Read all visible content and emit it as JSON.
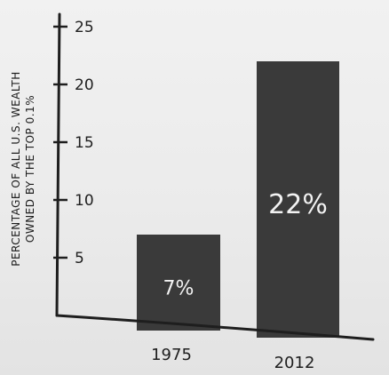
{
  "chart_data": {
    "type": "bar",
    "categories": [
      "1975",
      "2012"
    ],
    "values": [
      7,
      22
    ],
    "value_labels": [
      "7%",
      "22%"
    ],
    "title": "",
    "xlabel": "",
    "ylabel_lines": [
      "PERCENTAGE OF ALL U.S. WEALTH",
      "OWNED BY THE TOP 0.1%"
    ],
    "yticks": [
      5,
      10,
      15,
      20,
      25
    ],
    "ylim": [
      0,
      26
    ],
    "grid": false,
    "colors": {
      "bar": "#3a3a3a",
      "bar_label": "#f2f2f2",
      "axis": "#1e1e1e",
      "background": "#eeeeee"
    }
  }
}
